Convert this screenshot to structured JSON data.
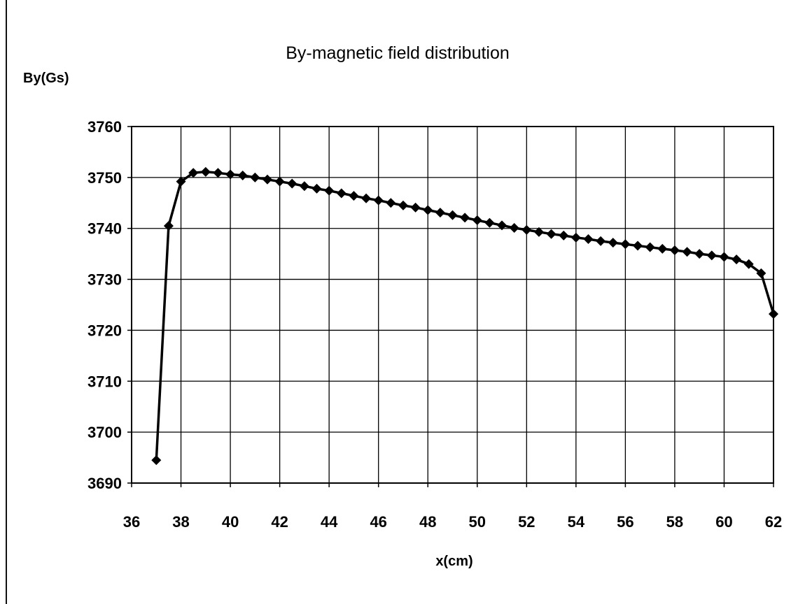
{
  "chart_data": {
    "type": "line",
    "title": "By-magnetic field distribution",
    "ylabel": "By(Gs)",
    "xlabel": "x(cm)",
    "xlim": [
      36,
      62
    ],
    "ylim": [
      3690,
      3760
    ],
    "xticks": [
      "36",
      "38",
      "40",
      "42",
      "44",
      "46",
      "48",
      "50",
      "52",
      "54",
      "56",
      "58",
      "60",
      "62"
    ],
    "yticks": [
      "3690",
      "3700",
      "3710",
      "3720",
      "3730",
      "3740",
      "3750",
      "3760"
    ],
    "grid": true,
    "marker": "diamond",
    "line_color": "#000000",
    "series": [
      {
        "x": [
          37,
          37.5,
          38,
          38.5,
          39,
          39.5,
          40,
          40.5,
          41,
          41.5,
          42,
          42.5,
          43,
          43.5,
          44,
          44.5,
          45,
          45.5,
          46,
          46.5,
          47,
          47.5,
          48,
          48.5,
          49,
          49.5,
          50,
          50.5,
          51,
          51.5,
          52,
          52.5,
          53,
          53.5,
          54,
          54.5,
          55,
          55.5,
          56,
          56.5,
          57,
          57.5,
          58,
          58.5,
          59,
          59.5,
          60,
          60.5,
          61,
          61.5,
          62
        ],
        "y": [
          3694.5,
          3740.5,
          3749.2,
          3750.9,
          3751.1,
          3750.9,
          3750.6,
          3750.4,
          3750.0,
          3749.6,
          3749.2,
          3748.8,
          3748.3,
          3747.8,
          3747.4,
          3746.9,
          3746.4,
          3745.9,
          3745.5,
          3745.0,
          3744.5,
          3744.1,
          3743.6,
          3743.1,
          3742.6,
          3742.1,
          3741.6,
          3741.1,
          3740.6,
          3740.1,
          3739.7,
          3739.3,
          3738.9,
          3738.6,
          3738.2,
          3737.9,
          3737.5,
          3737.2,
          3736.9,
          3736.6,
          3736.3,
          3736.0,
          3735.7,
          3735.4,
          3735.0,
          3734.7,
          3734.4,
          3733.9,
          3733.0,
          3731.2,
          3723.2
        ]
      }
    ]
  }
}
